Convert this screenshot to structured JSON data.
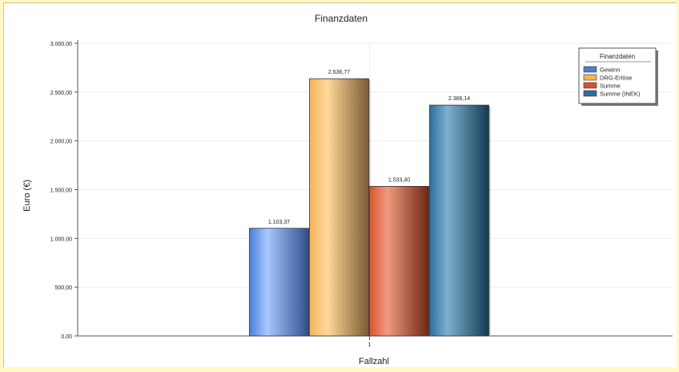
{
  "chart_data": {
    "type": "bar",
    "title": "Finanzdaten",
    "xlabel": "Fallzahl",
    "ylabel": "Euro (€)",
    "categories": [
      "1"
    ],
    "ylim": [
      0,
      3000
    ],
    "yticks": [
      {
        "value": 0,
        "label": "0,00"
      },
      {
        "value": 500,
        "label": "500,00"
      },
      {
        "value": 1000,
        "label": "1.000,00"
      },
      {
        "value": 1500,
        "label": "1.500,00"
      },
      {
        "value": 2000,
        "label": "2.000,00"
      },
      {
        "value": 2500,
        "label": "2.500,00"
      },
      {
        "value": 3000,
        "label": "3.000,00"
      }
    ],
    "grid": true,
    "legend": {
      "title": "Finanzdaten",
      "position": "top-right"
    },
    "series": [
      {
        "name": "Gewinn",
        "values": [
          1103.37
        ],
        "label": "1.103,37",
        "color": "#4a7fd6",
        "dark": "#2f4f8c",
        "light": "#a9c8ff"
      },
      {
        "name": "DRG-Erlöse",
        "values": [
          2636.77
        ],
        "label": "2.636,77",
        "color": "#f3b35c",
        "dark": "#7c5a32",
        "light": "#ffd89a"
      },
      {
        "name": "Summe",
        "values": [
          1533.4
        ],
        "label": "1.533,40",
        "color": "#d9542c",
        "dark": "#6e2612",
        "light": "#f09a80"
      },
      {
        "name": "Summe (INEK)",
        "values": [
          2366.14
        ],
        "label": "2.366,14",
        "color": "#2e6f9c",
        "dark": "#133a52",
        "light": "#7fb0d0"
      }
    ]
  }
}
